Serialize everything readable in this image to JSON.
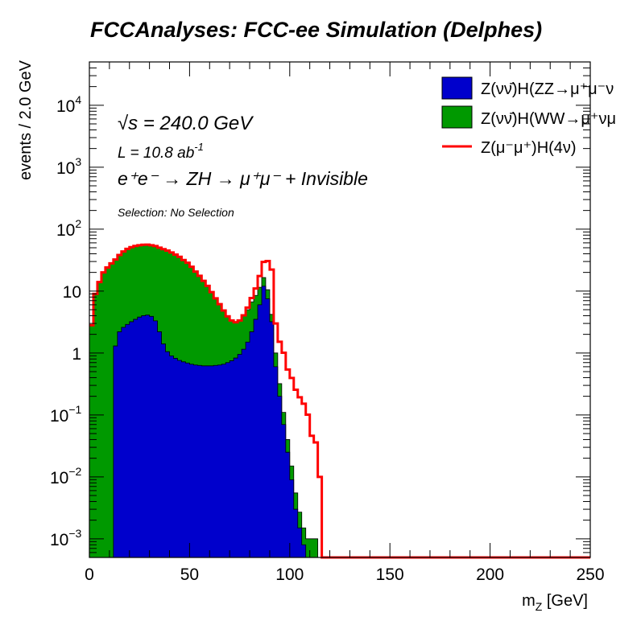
{
  "chart_data": {
    "type": "area",
    "title": "FCCAnalyses: FCC-ee Simulation (Delphes)",
    "xlabel": "m_Z [GeV]",
    "ylabel": "events / 2.0 GeV",
    "xlim": [
      0,
      250
    ],
    "ylim": [
      0.0005,
      50000
    ],
    "yscale": "log",
    "bin_width": 2,
    "x_ticks": [
      "0",
      "50",
      "100",
      "150",
      "200",
      "250"
    ],
    "annotations": {
      "sqrt_s": "√s = 240.0 GeV",
      "lumi": "L = 10.8 ab",
      "lumi_exp": "-1",
      "process": "e⁺e⁻ → ZH → μ⁺μ⁻ + Invisible",
      "selection": "Selection: No Selection"
    },
    "legend_position": "top-right",
    "series": [
      {
        "name": "Z(νν̄)H(ZZ→μ⁺μ⁻ν",
        "color": "#0000cc",
        "style": "filled-stacked",
        "x": [
          1,
          3,
          5,
          7,
          9,
          11,
          13,
          15,
          17,
          19,
          21,
          23,
          25,
          27,
          29,
          31,
          33,
          35,
          37,
          39,
          41,
          43,
          45,
          47,
          49,
          51,
          53,
          55,
          57,
          59,
          61,
          63,
          65,
          67,
          69,
          71,
          73,
          75,
          77,
          79,
          81,
          83,
          85,
          87,
          89,
          91,
          93,
          95,
          97,
          99,
          101,
          103,
          105,
          107,
          109,
          111,
          113
        ],
        "values": [
          0.0005,
          0.0005,
          0.0005,
          0.0005,
          0.0005,
          0.0005,
          1.3,
          2.2,
          2.6,
          2.9,
          3.2,
          3.5,
          3.8,
          4.0,
          4.1,
          3.9,
          3.3,
          2.2,
          1.4,
          1.05,
          0.9,
          0.82,
          0.76,
          0.72,
          0.69,
          0.66,
          0.64,
          0.63,
          0.62,
          0.62,
          0.62,
          0.63,
          0.64,
          0.66,
          0.7,
          0.75,
          0.83,
          0.95,
          1.15,
          1.5,
          2.2,
          3.5,
          6.0,
          12.0,
          7.5,
          3.2,
          0.6,
          0.2,
          0.07,
          0.025,
          0.009,
          0.003,
          0.0015,
          0.0008,
          0.0005,
          0.0005,
          0.0005
        ]
      },
      {
        "name": "Z(νν̄)H(WW→μ⁺νμ",
        "color": "#009900",
        "style": "filled-stacked",
        "x": [
          1,
          3,
          5,
          7,
          9,
          11,
          13,
          15,
          17,
          19,
          21,
          23,
          25,
          27,
          29,
          31,
          33,
          35,
          37,
          39,
          41,
          43,
          45,
          47,
          49,
          51,
          53,
          55,
          57,
          59,
          61,
          63,
          65,
          67,
          69,
          71,
          73,
          75,
          77,
          79,
          81,
          83,
          85,
          87,
          89,
          91,
          93,
          95,
          97,
          99,
          101,
          103,
          105,
          107,
          109,
          111,
          113
        ],
        "values": [
          2.8,
          9.0,
          14.0,
          20.0,
          24.0,
          28.0,
          31.0,
          36.0,
          41.0,
          45.0,
          48.0,
          50.0,
          51.0,
          52.0,
          52.0,
          51.0,
          50.0,
          48.0,
          46.0,
          44.0,
          41.0,
          38.0,
          35.0,
          31.0,
          28.0,
          24.0,
          20.0,
          17.0,
          14.0,
          11.5,
          9.0,
          7.0,
          5.5,
          4.2,
          3.2,
          2.6,
          2.3,
          2.4,
          2.8,
          3.5,
          4.5,
          5.0,
          5.5,
          4.5,
          3.0,
          1.0,
          0.4,
          0.12,
          0.04,
          0.015,
          0.006,
          0.0025,
          0.0012,
          0.0007,
          0.0005,
          0.0005,
          0.0005
        ]
      },
      {
        "name": "Z(μ⁻μ⁺)H(4ν)",
        "color": "#ff0000",
        "style": "line-stacked",
        "x": [
          1,
          3,
          5,
          7,
          9,
          11,
          13,
          15,
          17,
          19,
          21,
          23,
          25,
          27,
          29,
          31,
          33,
          35,
          37,
          39,
          41,
          43,
          45,
          47,
          49,
          51,
          53,
          55,
          57,
          59,
          61,
          63,
          65,
          67,
          69,
          71,
          73,
          75,
          77,
          79,
          81,
          83,
          85,
          87,
          89,
          91,
          93,
          95,
          97,
          99,
          101,
          103,
          105,
          107,
          109,
          111,
          113,
          115
        ],
        "values": [
          0,
          0,
          0,
          0,
          0,
          0,
          0,
          0,
          0,
          0,
          0,
          0,
          0,
          0,
          0,
          0,
          0,
          0,
          0,
          0,
          0,
          0,
          0,
          0,
          0,
          0,
          0,
          0,
          0,
          0,
          0,
          0,
          0,
          0,
          0,
          0,
          0,
          0,
          0.1,
          0.4,
          1.0,
          2.5,
          6.0,
          13.0,
          20.0,
          18.0,
          2.0,
          1.2,
          0.9,
          0.5,
          0.38,
          0.25,
          0.19,
          0.15,
          0.1,
          0.045,
          0.035,
          0.01
        ]
      }
    ]
  },
  "legend_extra": {
    "zz_item": {
      "box_color": "#0000cc"
    },
    "ww_item": {
      "box_color": "#009900"
    },
    "sig_item": {
      "line_color": "#ff0000"
    }
  }
}
